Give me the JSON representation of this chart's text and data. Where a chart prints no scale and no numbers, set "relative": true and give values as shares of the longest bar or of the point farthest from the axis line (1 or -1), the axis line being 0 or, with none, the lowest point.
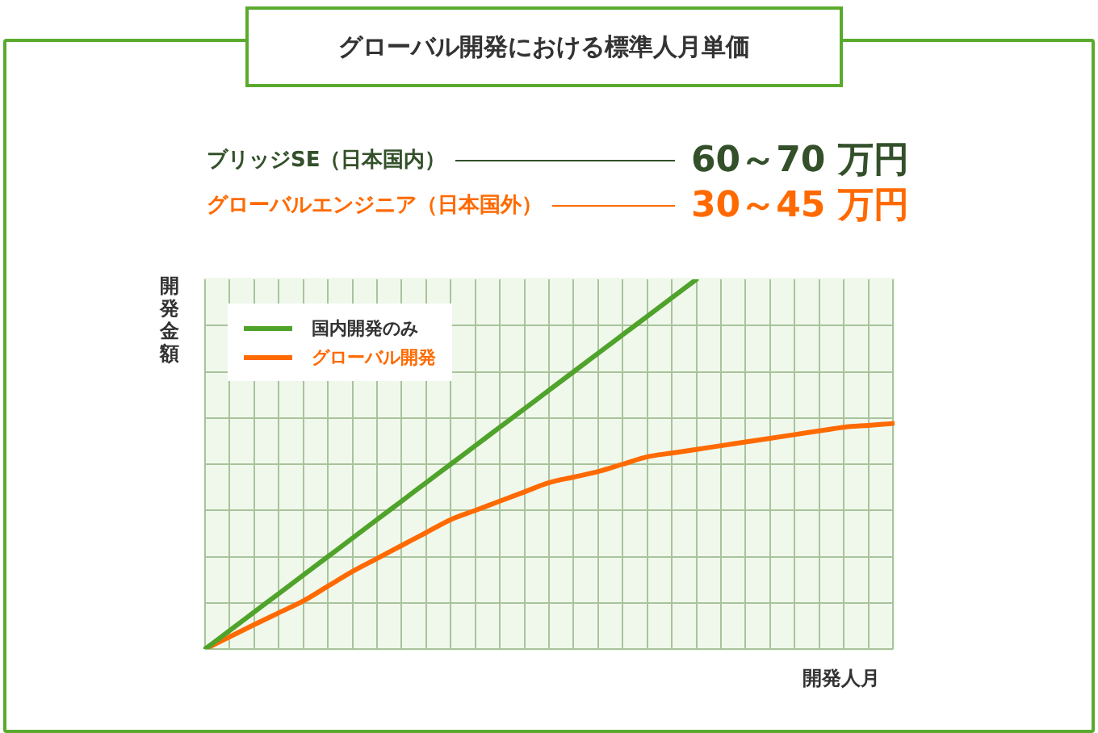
{
  "chart_data": {
    "type": "line",
    "title": "グローバル開発における標準人月単価",
    "annotations": [
      "ブリッジSE（日本国内）",
      "60～70 万円",
      "グローバルエンジニア（日本国外）",
      "30～45 万円"
    ],
    "xlabel": "開発人月",
    "ylabel": "開発金額",
    "relative": true,
    "grid": true,
    "legend": "top left",
    "marker": "none",
    "line_style": "solid",
    "categories": [
      null,
      null,
      null,
      null,
      null,
      null,
      null,
      null,
      null,
      null,
      null,
      null,
      null,
      null,
      null,
      null,
      null,
      null,
      null,
      null,
      null,
      null,
      null,
      null,
      null,
      null,
      null,
      null,
      null
    ],
    "series": [
      {
        "name": "国内開発のみ",
        "color": "#4fa32a",
        "values": [
          0,
          0.05,
          0.1,
          0.15,
          0.2,
          0.25,
          0.3,
          0.35,
          0.4,
          0.45,
          0.5,
          0.55,
          0.6,
          0.65,
          0.7,
          0.75,
          0.8,
          0.85,
          0.9,
          0.95,
          1,
          null,
          null,
          null,
          null,
          null,
          null,
          null,
          null
        ]
      },
      {
        "name": "グローバル開発",
        "color": "#ff6a00",
        "values": [
          0,
          0.033,
          0.066,
          0.098,
          0.13,
          0.17,
          0.21,
          0.245,
          0.28,
          0.315,
          0.35,
          0.375,
          0.4,
          0.425,
          0.45,
          0.465,
          0.48,
          0.5,
          0.52,
          0.53,
          0.54,
          0.55,
          0.56,
          0.57,
          0.58,
          0.59,
          0.6,
          0.605,
          0.61
        ]
      }
    ]
  }
}
